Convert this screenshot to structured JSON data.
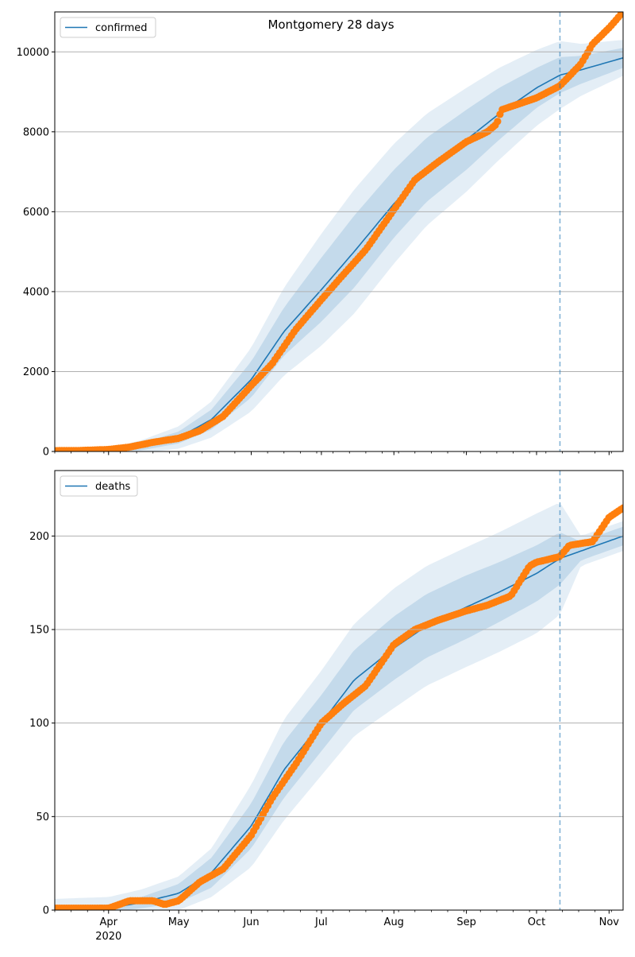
{
  "chart_data": [
    {
      "type": "line",
      "title": "Montgomery 28 days",
      "xlabel": "",
      "ylabel": "",
      "x_tick_labels": [
        "Apr",
        "May",
        "Jun",
        "Jul",
        "Aug",
        "Sep",
        "Oct",
        "Nov"
      ],
      "x_tick_dates": [
        "2020-04-01",
        "2020-05-01",
        "2020-06-01",
        "2020-07-01",
        "2020-08-01",
        "2020-09-01",
        "2020-10-01",
        "2020-11-01"
      ],
      "x_year_label": "2020",
      "xlim": [
        "2020-03-09",
        "2020-11-07"
      ],
      "ylim": [
        0,
        11000
      ],
      "y_ticks": [
        0,
        2000,
        4000,
        6000,
        8000,
        10000
      ],
      "grid": "horizontal",
      "legend_position": "top-left",
      "forecast_start": "2020-10-11",
      "series": [
        {
          "name": "confirmed",
          "role": "model",
          "color": "#1f77b4",
          "x": [
            "2020-03-09",
            "2020-04-01",
            "2020-04-15",
            "2020-05-01",
            "2020-05-15",
            "2020-06-01",
            "2020-06-15",
            "2020-07-01",
            "2020-07-15",
            "2020-08-01",
            "2020-08-15",
            "2020-09-01",
            "2020-09-15",
            "2020-10-01",
            "2020-10-11",
            "2020-10-20",
            "2020-11-07"
          ],
          "y": [
            0,
            30,
            120,
            350,
            800,
            1800,
            3000,
            4050,
            5000,
            6200,
            7050,
            7800,
            8450,
            9100,
            9420,
            9550,
            9850
          ],
          "band_widths": [
            [
              0,
              30,
              90,
              150,
              250,
              450,
              600,
              800,
              900,
              850,
              800,
              750,
              650,
              500,
              450,
              350,
              250
            ],
            [
              0,
              50,
              160,
              280,
              450,
              800,
              1100,
              1400,
              1550,
              1500,
              1400,
              1300,
              1150,
              950,
              850,
              650,
              450
            ]
          ]
        },
        {
          "name": "",
          "role": "observed",
          "color": "#ff7f0e",
          "x": [
            "2020-03-09",
            "2020-03-20",
            "2020-04-01",
            "2020-04-10",
            "2020-04-20",
            "2020-05-01",
            "2020-05-10",
            "2020-05-20",
            "2020-06-01",
            "2020-06-10",
            "2020-06-20",
            "2020-07-01",
            "2020-07-10",
            "2020-07-20",
            "2020-08-01",
            "2020-08-10",
            "2020-08-20",
            "2020-09-01",
            "2020-09-10",
            "2020-09-14",
            "2020-09-16",
            "2020-10-01",
            "2020-10-11",
            "2020-10-20",
            "2020-10-25",
            "2020-11-01",
            "2020-11-07"
          ],
          "y": [
            20,
            25,
            50,
            110,
            230,
            330,
            520,
            880,
            1650,
            2200,
            3050,
            3800,
            4400,
            5050,
            6050,
            6800,
            7250,
            7750,
            8000,
            8200,
            8550,
            8850,
            9150,
            9700,
            10200,
            10600,
            11000
          ]
        }
      ]
    },
    {
      "type": "line",
      "title": "",
      "xlabel": "",
      "ylabel": "",
      "x_tick_labels": [
        "Apr",
        "May",
        "Jun",
        "Jul",
        "Aug",
        "Sep",
        "Oct",
        "Nov"
      ],
      "x_tick_dates": [
        "2020-04-01",
        "2020-05-01",
        "2020-06-01",
        "2020-07-01",
        "2020-08-01",
        "2020-09-01",
        "2020-10-01",
        "2020-11-01"
      ],
      "x_year_label": "2020",
      "xlim": [
        "2020-03-09",
        "2020-11-07"
      ],
      "ylim": [
        0,
        235
      ],
      "y_ticks": [
        0,
        50,
        100,
        150,
        200
      ],
      "grid": "horizontal",
      "legend_position": "top-left",
      "forecast_start": "2020-10-11",
      "series": [
        {
          "name": "deaths",
          "role": "model",
          "color": "#1f77b4",
          "x": [
            "2020-03-09",
            "2020-04-01",
            "2020-04-15",
            "2020-05-01",
            "2020-05-15",
            "2020-06-01",
            "2020-06-15",
            "2020-07-01",
            "2020-07-15",
            "2020-08-01",
            "2020-08-15",
            "2020-09-01",
            "2020-09-15",
            "2020-10-01",
            "2020-10-11",
            "2020-10-20",
            "2020-11-07"
          ],
          "y": [
            0,
            1,
            4,
            9,
            20,
            45,
            75,
            100,
            123,
            140,
            152,
            162,
            170,
            180,
            188,
            192,
            200
          ],
          "band_widths": [
            [
              2,
              2,
              3,
              5,
              8,
              12,
              15,
              15,
              16,
              17,
              17,
              17,
              16,
              15,
              14,
              5,
              5
            ],
            [
              6,
              6,
              7,
              9,
              13,
              22,
              27,
              28,
              30,
              32,
              32,
              32,
              32,
              32,
              30,
              8,
              8
            ]
          ]
        },
        {
          "name": "",
          "role": "observed",
          "color": "#ff7f0e",
          "x": [
            "2020-03-09",
            "2020-04-01",
            "2020-04-10",
            "2020-04-20",
            "2020-04-25",
            "2020-05-01",
            "2020-05-10",
            "2020-05-20",
            "2020-06-01",
            "2020-06-10",
            "2020-06-20",
            "2020-07-01",
            "2020-07-10",
            "2020-07-20",
            "2020-08-01",
            "2020-08-10",
            "2020-08-20",
            "2020-09-01",
            "2020-09-10",
            "2020-09-20",
            "2020-09-28",
            "2020-10-01",
            "2020-10-11",
            "2020-10-15",
            "2020-10-25",
            "2020-11-01",
            "2020-11-07"
          ],
          "y": [
            1,
            1,
            5,
            5,
            3,
            5,
            15,
            22,
            40,
            60,
            78,
            100,
            110,
            120,
            142,
            150,
            155,
            160,
            163,
            168,
            184,
            186,
            189,
            195,
            197,
            210,
            215
          ]
        }
      ]
    }
  ]
}
